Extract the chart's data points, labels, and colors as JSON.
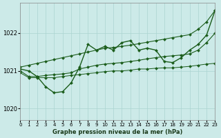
{
  "xlabel": "Graphe pression niveau de la mer (hPa)",
  "xlim": [
    0,
    23
  ],
  "ylim": [
    1019.7,
    1022.8
  ],
  "yticks": [
    1020,
    1021,
    1022
  ],
  "xticks": [
    0,
    1,
    2,
    3,
    4,
    5,
    6,
    7,
    8,
    9,
    10,
    11,
    12,
    13,
    14,
    15,
    16,
    17,
    18,
    19,
    20,
    21,
    22,
    23
  ],
  "bg_color": "#cceae8",
  "line_color": "#1a5c1a",
  "grid_color": "#aad4d0",
  "series": [
    {
      "x": [
        0,
        1,
        2,
        3,
        4,
        5,
        6,
        7,
        8,
        9,
        10,
        11,
        12,
        13,
        14,
        15,
        16,
        17,
        18,
        19,
        20,
        21,
        22,
        23
      ],
      "y": [
        1021.05,
        1021.0,
        1020.85,
        1020.58,
        1020.42,
        1020.45,
        1020.68,
        1021.1,
        1021.7,
        1021.55,
        1021.65,
        1021.55,
        1021.75,
        1021.8,
        1021.55,
        1021.6,
        1021.55,
        1021.25,
        1021.22,
        1021.35,
        1021.55,
        1021.7,
        1021.95,
        1022.6
      ],
      "lw": 1.0
    },
    {
      "x": [
        0,
        1,
        2,
        3,
        4,
        5,
        6,
        7,
        8,
        9,
        10,
        11,
        12,
        13,
        14,
        15,
        16,
        17,
        18,
        19,
        20,
        21,
        22,
        23
      ],
      "y": [
        1021.1,
        1021.15,
        1021.2,
        1021.25,
        1021.3,
        1021.35,
        1021.4,
        1021.45,
        1021.5,
        1021.55,
        1021.6,
        1021.62,
        1021.65,
        1021.68,
        1021.72,
        1021.76,
        1021.8,
        1021.84,
        1021.88,
        1021.92,
        1021.96,
        1022.1,
        1022.3,
        1022.6
      ],
      "lw": 0.8
    },
    {
      "x": [
        0,
        1,
        2,
        3,
        4,
        5,
        6,
        7,
        8,
        9,
        10,
        11,
        12,
        13,
        14,
        15,
        16,
        17,
        18,
        19,
        20,
        21,
        22,
        23
      ],
      "y": [
        1021.0,
        1020.85,
        1020.85,
        1020.88,
        1020.9,
        1020.92,
        1020.95,
        1021.05,
        1021.1,
        1021.15,
        1021.18,
        1021.2,
        1021.22,
        1021.25,
        1021.28,
        1021.32,
        1021.35,
        1021.38,
        1021.4,
        1021.42,
        1021.45,
        1021.55,
        1021.75,
        1022.0
      ],
      "lw": 0.8
    },
    {
      "x": [
        0,
        1,
        2,
        3,
        4,
        5,
        6,
        7,
        8,
        9,
        10,
        11,
        12,
        13,
        14,
        15,
        16,
        17,
        18,
        19,
        20,
        21,
        22,
        23
      ],
      "y": [
        1020.95,
        1020.82,
        1020.82,
        1020.82,
        1020.82,
        1020.85,
        1020.88,
        1020.9,
        1020.93,
        1020.95,
        1020.98,
        1021.0,
        1021.0,
        1021.02,
        1021.05,
        1021.05,
        1021.07,
        1021.08,
        1021.08,
        1021.1,
        1021.12,
        1021.15,
        1021.18,
        1021.2
      ],
      "lw": 0.7
    }
  ]
}
